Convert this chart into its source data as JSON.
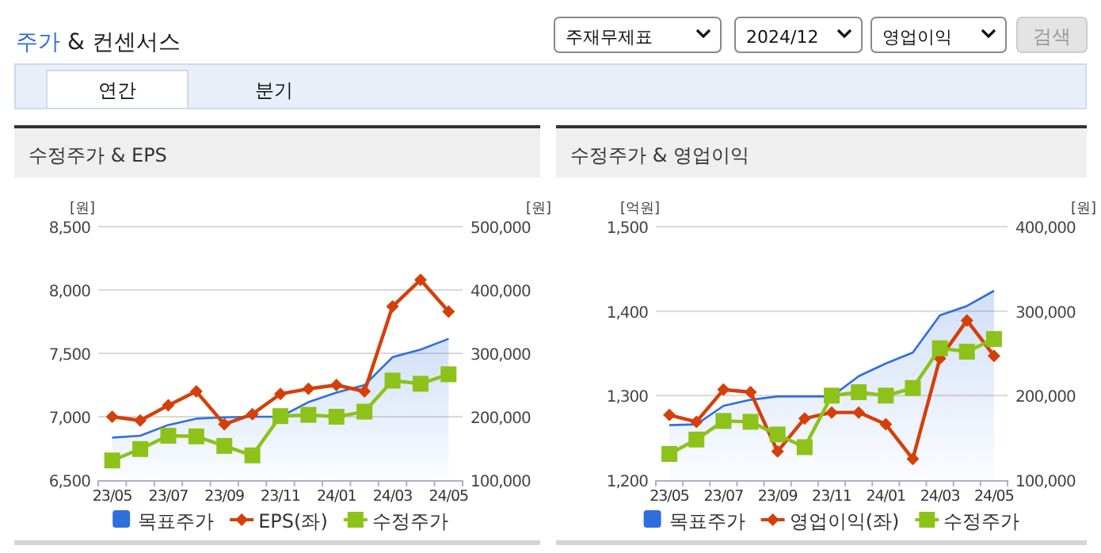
{
  "chart_data": [
    {
      "type": "other",
      "title": "주가 & 컨센서스",
      "annotations": [
        "주재무제표",
        "2024/12",
        "영업이익",
        "검색",
        "연간",
        "분기"
      ]
    },
    {
      "type": "line",
      "title": "수정주가 & EPS",
      "ylabel": "[원]",
      "y2label": "[원]",
      "categories": [
        "23/05",
        null,
        "23/07",
        null,
        "23/09",
        null,
        "23/11",
        null,
        "24/01",
        null,
        "24/03",
        null,
        "24/05"
      ],
      "ylim": [
        6500,
        8500
      ],
      "yticks": [
        {
          "value": 6500,
          "label": "6,500"
        },
        {
          "value": 7000,
          "label": "7,000"
        },
        {
          "value": 7500,
          "label": "7,500"
        },
        {
          "value": 8000,
          "label": "8,000"
        },
        {
          "value": 8500,
          "label": "8,500"
        }
      ],
      "y2lim": [
        100000,
        500000
      ],
      "y2ticks": [
        {
          "value": 100000,
          "label": "100,000"
        },
        {
          "value": 200000,
          "label": "200,000"
        },
        {
          "value": 300000,
          "label": "300,000"
        },
        {
          "value": 400000,
          "label": "400,000"
        },
        {
          "value": 500000,
          "label": "500,000"
        }
      ],
      "grid": "y",
      "legend": "bottom",
      "series": [
        {
          "name": "목표주가",
          "type": "area",
          "axis": "y2",
          "color": "#2f6fdc",
          "values": [
            167000,
            170000,
            187000,
            197000,
            199000,
            200000,
            200000,
            223000,
            238000,
            250000,
            294000,
            306000,
            323000
          ]
        },
        {
          "name": "EPS(좌)",
          "type": "line",
          "axis": "y",
          "color": "#d43f0a",
          "marker": "diamond",
          "values": [
            7000,
            6970,
            7090,
            7200,
            6940,
            7020,
            7180,
            7220,
            7250,
            7200,
            7870,
            8080,
            7830
          ]
        },
        {
          "name": "수정주가",
          "type": "line",
          "axis": "y2",
          "color": "#8cc21a",
          "marker": "square",
          "values": [
            131000,
            149000,
            170000,
            169000,
            154000,
            139000,
            201000,
            203000,
            200000,
            208000,
            257000,
            252000,
            267000
          ]
        }
      ]
    },
    {
      "type": "line",
      "title": "수정주가 & 영업이익",
      "ylabel": "[억원]",
      "y2label": "[원]",
      "categories": [
        "23/05",
        null,
        "23/07",
        null,
        "23/09",
        null,
        "23/11",
        null,
        "24/01",
        null,
        "24/03",
        null,
        "24/05"
      ],
      "ylim": [
        1200,
        1500
      ],
      "yticks": [
        {
          "value": 1200,
          "label": "1,200"
        },
        {
          "value": 1300,
          "label": "1,300"
        },
        {
          "value": 1400,
          "label": "1,400"
        },
        {
          "value": 1500,
          "label": "1,500"
        }
      ],
      "y2lim": [
        100000,
        400000
      ],
      "y2ticks": [
        {
          "value": 100000,
          "label": "100,000"
        },
        {
          "value": 200000,
          "label": "200,000"
        },
        {
          "value": 300000,
          "label": "300,000"
        },
        {
          "value": 400000,
          "label": "400,000"
        }
      ],
      "grid": "y",
      "legend": "bottom",
      "series": [
        {
          "name": "목표주가",
          "type": "area",
          "axis": "y2",
          "color": "#2f6fdc",
          "values": [
            165000,
            166000,
            188000,
            195000,
            199000,
            199000,
            199000,
            223000,
            238000,
            251000,
            295000,
            306000,
            324000
          ]
        },
        {
          "name": "영업이익(좌)",
          "type": "line",
          "axis": "y",
          "color": "#d43f0a",
          "marker": "diamond",
          "values": [
            1277,
            1269,
            1307,
            1304,
            1234,
            1273,
            1280,
            1280,
            1266,
            1225,
            1344,
            1389,
            1347
          ]
        },
        {
          "name": "수정주가",
          "type": "line",
          "axis": "y2",
          "color": "#8cc21a",
          "marker": "square",
          "values": [
            131000,
            148000,
            170000,
            169000,
            154000,
            139000,
            200000,
            204000,
            200000,
            209000,
            256000,
            252000,
            267000
          ]
        }
      ]
    }
  ]
}
